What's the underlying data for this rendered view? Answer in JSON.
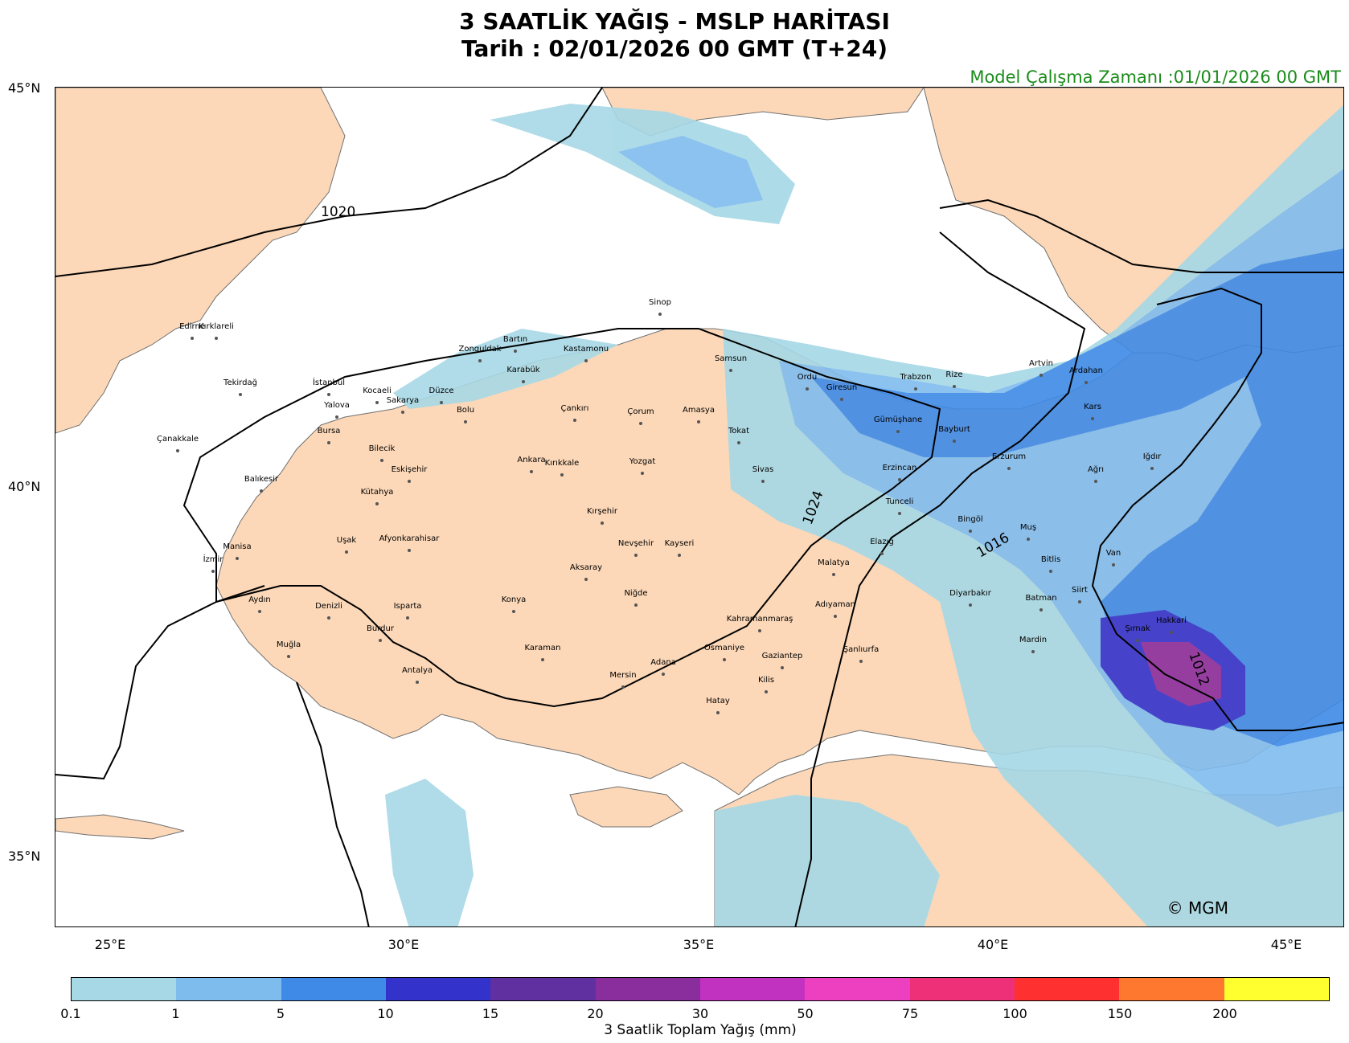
{
  "title": {
    "line1": "3 SAATLİK YAĞIŞ - MSLP HARİTASI",
    "line2": "Tarih : 02/01/2026  00 GMT (T+24)"
  },
  "model_time": "Model Çalışma Zamanı :01/01/2026  00 GMT",
  "copyright": "© MGM",
  "axes": {
    "lat_labels": [
      "45°N",
      "40°N",
      "35°N"
    ],
    "lon_labels": [
      "25°E",
      "30°E",
      "35°E",
      "40°E",
      "45°E"
    ]
  },
  "colors": {
    "land": "#fcd8b8",
    "sea": "#ffffff",
    "border": "#707070",
    "isobar": "#000000"
  },
  "isobars": [
    {
      "label": "1020"
    },
    {
      "label": "1024"
    },
    {
      "label": "1016"
    },
    {
      "label": "1012"
    }
  ],
  "cities": [
    "Edirne",
    "Kırklareli",
    "Tekirdağ",
    "İstanbul",
    "Çanakkale",
    "Yalova",
    "Bursa",
    "Kocaeli",
    "Sakarya",
    "Düzce",
    "Bolu",
    "Zonguldak",
    "Bartın",
    "Karabük",
    "Kastamonu",
    "Sinop",
    "Samsun",
    "Ordu",
    "Giresun",
    "Trabzon",
    "Rize",
    "Artvin",
    "Ardahan",
    "Kars",
    "Iğdır",
    "Ağrı",
    "Erzurum",
    "Gümüşhane",
    "Bayburt",
    "Erzincan",
    "Tunceli",
    "Bingöl",
    "Muş",
    "Bitlis",
    "Van",
    "Hakkari",
    "Şırnak",
    "Siirt",
    "Batman",
    "Mardin",
    "Diyarbakır",
    "Elazığ",
    "Malatya",
    "Adıyaman",
    "Şanlıurfa",
    "Gaziantep",
    "Kilis",
    "Hatay",
    "Osmaniye",
    "Adana",
    "Mersin",
    "Karaman",
    "Niğde",
    "Aksaray",
    "Nevşehir",
    "Kayseri",
    "Kırşehir",
    "Kırıkkale",
    "Ankara",
    "Çankırı",
    "Çorum",
    "Amasya",
    "Tokat",
    "Sivas",
    "Yozgat",
    "Bilecik",
    "Eskişehir",
    "Kütahya",
    "Balıkesir",
    "Manisa",
    "İzmir",
    "Aydın",
    "Muğla",
    "Denizli",
    "Uşak",
    "Afyonkarahisar",
    "Isparta",
    "Burdur",
    "Antalya",
    "Konya",
    "Kahramanmaraş"
  ],
  "colorbar": {
    "label": "3 Saatlik Toplam Yağış (mm)",
    "ticks": [
      "0.1",
      "1",
      "5",
      "10",
      "15",
      "20",
      "30",
      "50",
      "75",
      "100",
      "150",
      "200"
    ],
    "colors": [
      "#a6d8e6",
      "#7fbcee",
      "#3f8ae6",
      "#3333cc",
      "#6030a0",
      "#8a2e9e",
      "#c232c0",
      "#ec40c0",
      "#ee3078",
      "#ff3030",
      "#ff7830",
      "#ffff30"
    ]
  }
}
